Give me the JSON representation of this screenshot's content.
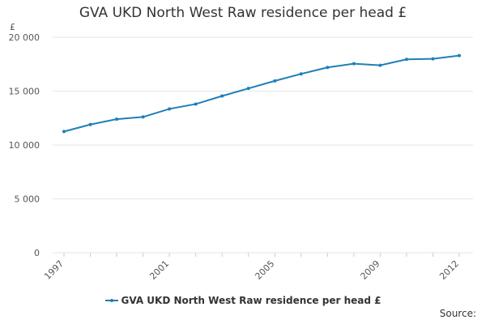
{
  "chart_data": {
    "type": "line",
    "title": "GVA UKD North West Raw residence per head £",
    "ylabel": "£",
    "xlabel": "",
    "x": [
      1997,
      1998,
      1999,
      2000,
      2001,
      2002,
      2003,
      2004,
      2005,
      2006,
      2007,
      2008,
      2009,
      2010,
      2011,
      2012
    ],
    "x_tick_labels": [
      "1997",
      "2001",
      "2005",
      "2009",
      "2012"
    ],
    "y_tick_labels": [
      "0",
      "5 000",
      "10 000",
      "15 000",
      "20 000"
    ],
    "ylim": [
      0,
      20000
    ],
    "grid": true,
    "legend_position": "bottom",
    "series": [
      {
        "name": "GVA UKD North West Raw residence per head £",
        "color": "#1f7fb8",
        "values": [
          11250,
          11900,
          12400,
          12600,
          13350,
          13800,
          14550,
          15250,
          15950,
          16600,
          17200,
          17550,
          17400,
          17950,
          18000,
          18300
        ]
      }
    ]
  },
  "source_label": "Source:"
}
